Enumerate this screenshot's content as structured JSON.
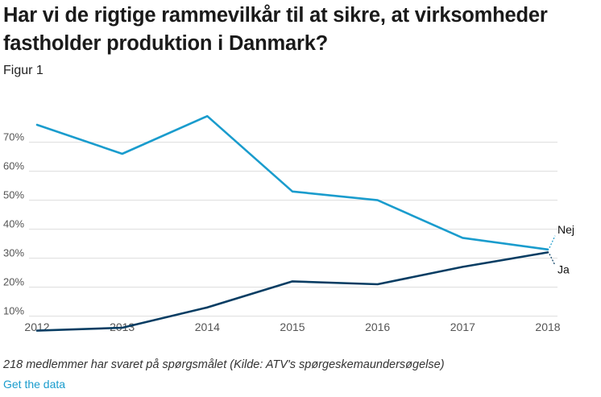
{
  "header": {
    "title": "Har vi de rigtige rammevilkår til at sikre, at virksomheder fastholder produktion i Danmark?",
    "subtitle": "Figur 1"
  },
  "footer": {
    "note": "218 medlemmer har svaret på spørgsmålet (Kilde: ATV's spørgeskemaundersøgelse)",
    "link_label": "Get the data"
  },
  "chart_data": {
    "type": "line",
    "x": [
      2012,
      2013,
      2014,
      2015,
      2016,
      2017,
      2018
    ],
    "x_tick_labels": [
      "2012",
      "2013",
      "2014",
      "2015",
      "2016",
      "2017",
      "2018"
    ],
    "y_tick_labels": [
      "10%",
      "20%",
      "30%",
      "40%",
      "50%",
      "60%",
      "70%"
    ],
    "y_ticks": [
      10,
      20,
      30,
      40,
      50,
      60,
      70
    ],
    "ylim": [
      4,
      80
    ],
    "grid": true,
    "series": [
      {
        "name": "Nej",
        "color": "#1a9ccd",
        "values": [
          76,
          66,
          79,
          53,
          50,
          37,
          33
        ]
      },
      {
        "name": "Ja",
        "color": "#083d63",
        "values": [
          5,
          6,
          13,
          22,
          21,
          27,
          32
        ]
      }
    ]
  }
}
